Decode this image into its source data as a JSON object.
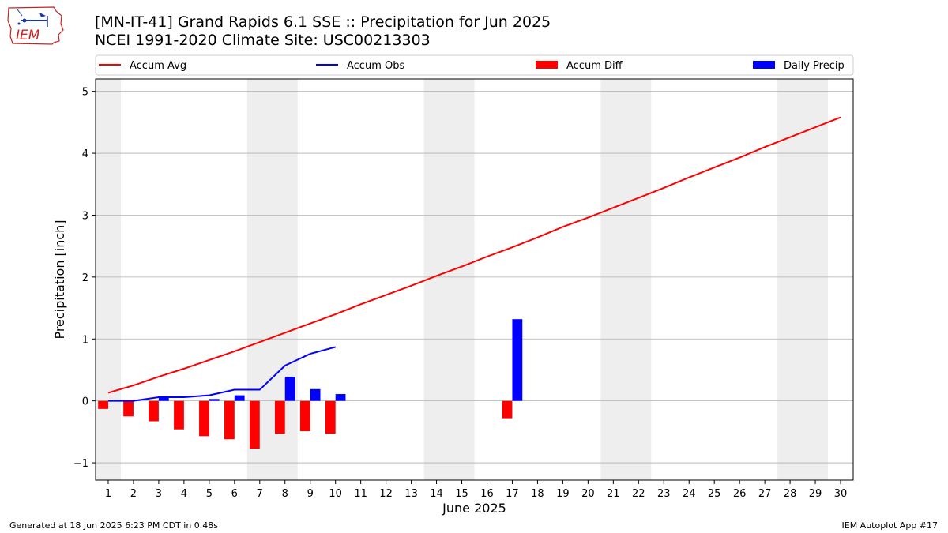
{
  "header": {
    "title_line1": "[MN-IT-41] Grand Rapids 6.1 SSE :: Precipitation for Jun 2025",
    "title_line2": "NCEI 1991-2020 Climate Site: USC00213303"
  },
  "logo": {
    "text": "IEM",
    "icon": "iem-iowa-state-logo"
  },
  "footer": {
    "left": "Generated at 18 Jun 2025 6:23 PM CDT in 0.48s",
    "right": "IEM Autoplot App #17"
  },
  "chart_data": {
    "type": "bar",
    "xlabel": "June 2025",
    "ylabel": "Precipitation [inch]",
    "xlim": [
      0.5,
      30.5
    ],
    "ylim": [
      -1.28,
      5.2
    ],
    "xticks": [
      1,
      2,
      3,
      4,
      5,
      6,
      7,
      8,
      9,
      10,
      11,
      12,
      13,
      14,
      15,
      16,
      17,
      18,
      19,
      20,
      21,
      22,
      23,
      24,
      25,
      26,
      27,
      28,
      29,
      30
    ],
    "yticks": [
      -1,
      0,
      1,
      2,
      3,
      4,
      5
    ],
    "ytick_labels": [
      "−1",
      "0",
      "1",
      "2",
      "3",
      "4",
      "5"
    ],
    "grid": "horizontal",
    "legend_placement": "top",
    "weekend_shading": [
      [
        0.5,
        1.5
      ],
      [
        6.5,
        8.5
      ],
      [
        13.5,
        15.5
      ],
      [
        20.5,
        22.5
      ],
      [
        27.5,
        29.5
      ]
    ],
    "colors": {
      "avg": "#ff0000",
      "obs": "#0000ff",
      "diff": "#ff0000",
      "daily": "#0000ff",
      "shade": "#eeeeee",
      "grid": "#b0b0b0"
    },
    "legend": [
      {
        "label": "Accum Avg",
        "kind": "line",
        "color": "#ff0000"
      },
      {
        "label": "Accum Obs",
        "kind": "line",
        "color": "#0000ff"
      },
      {
        "label": "Accum Diff",
        "kind": "bar",
        "color": "#ff0000"
      },
      {
        "label": "Daily Precip",
        "kind": "bar",
        "color": "#0000ff"
      }
    ],
    "series": [
      {
        "name": "Accum Avg",
        "type": "line",
        "color": "#ff0000",
        "x": [
          1,
          2,
          3,
          4,
          5,
          6,
          7,
          8,
          9,
          10,
          11,
          12,
          13,
          14,
          15,
          16,
          17,
          18,
          19,
          20,
          21,
          22,
          23,
          24,
          25,
          26,
          27,
          28,
          29,
          30
        ],
        "values": [
          0.13,
          0.25,
          0.39,
          0.52,
          0.66,
          0.8,
          0.95,
          1.1,
          1.25,
          1.4,
          1.56,
          1.71,
          1.86,
          2.02,
          2.17,
          2.33,
          2.48,
          2.64,
          2.81,
          2.96,
          3.12,
          3.28,
          3.44,
          3.61,
          3.77,
          3.93,
          4.1,
          4.26,
          4.42,
          4.58
        ]
      },
      {
        "name": "Accum Obs",
        "type": "line",
        "color": "#0000ff",
        "x": [
          1,
          2,
          3,
          4,
          5,
          6,
          7,
          8,
          9,
          10
        ],
        "values": [
          0.0,
          0.0,
          0.06,
          0.06,
          0.09,
          0.18,
          0.18,
          0.57,
          0.76,
          0.87
        ]
      },
      {
        "name": "Accum Diff",
        "type": "bar",
        "color": "#ff0000",
        "offset": -0.2,
        "x": [
          1,
          2,
          3,
          4,
          5,
          6,
          7,
          8,
          9,
          10,
          17
        ],
        "values": [
          -0.13,
          -0.25,
          -0.33,
          -0.46,
          -0.57,
          -0.62,
          -0.77,
          -0.53,
          -0.49,
          -0.53,
          -0.28
        ]
      },
      {
        "name": "Daily Precip",
        "type": "bar",
        "color": "#0000ff",
        "offset": 0.2,
        "x": [
          3,
          5,
          6,
          8,
          9,
          10,
          17
        ],
        "values": [
          0.06,
          0.03,
          0.09,
          0.39,
          0.19,
          0.11,
          1.32
        ]
      }
    ]
  }
}
